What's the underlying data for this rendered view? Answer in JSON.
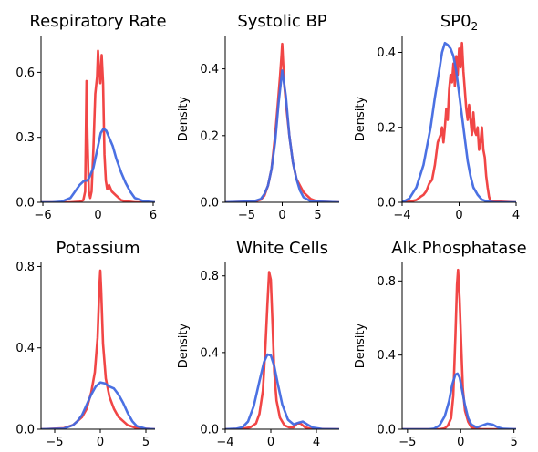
{
  "chart_data": [
    {
      "type": "line",
      "title": "Respiratory Rate",
      "title_sub": "",
      "ylabel": "",
      "xlim": [
        -6.2,
        6.2
      ],
      "ylim": [
        0,
        0.77
      ],
      "xticks": [
        -6,
        0,
        6
      ],
      "xtick_labels": [
        "−6",
        "0",
        "6"
      ],
      "yticks": [
        0.0,
        0.3,
        0.6
      ],
      "ytick_labels": [
        "0.0",
        "0.3",
        "0.6"
      ],
      "series": [
        {
          "color": "#f03c3c",
          "x": [
            -6.2,
            -3,
            -2,
            -1.6,
            -1.4,
            -1.25,
            -1.15,
            -1.0,
            -0.85,
            -0.7,
            -0.5,
            -0.3,
            -0.1,
            0.0,
            0.1,
            0.25,
            0.4,
            0.55,
            0.7,
            0.85,
            1.0,
            1.2,
            1.5,
            2,
            2.5,
            3,
            4,
            6.2
          ],
          "y": [
            0,
            0,
            0.003,
            0.01,
            0.05,
            0.56,
            0.3,
            0.05,
            0.02,
            0.05,
            0.25,
            0.5,
            0.58,
            0.7,
            0.62,
            0.55,
            0.68,
            0.55,
            0.22,
            0.1,
            0.06,
            0.08,
            0.05,
            0.03,
            0.01,
            0.005,
            0,
            0
          ]
        },
        {
          "color": "#4169e1",
          "x": [
            -6.2,
            -5,
            -4,
            -3,
            -2.5,
            -2,
            -1.5,
            -1.2,
            -1,
            -0.5,
            0,
            0.3,
            0.6,
            0.9,
            1.2,
            1.6,
            2,
            2.5,
            3,
            3.5,
            4,
            5,
            6.2
          ],
          "y": [
            0,
            0,
            0.003,
            0.02,
            0.05,
            0.08,
            0.1,
            0.1,
            0.11,
            0.16,
            0.26,
            0.32,
            0.34,
            0.33,
            0.3,
            0.26,
            0.2,
            0.14,
            0.09,
            0.05,
            0.02,
            0.005,
            0
          ]
        }
      ]
    },
    {
      "type": "line",
      "title": "Systolic BP",
      "title_sub": "",
      "ylabel": "Density",
      "xlim": [
        -8,
        8
      ],
      "ylim": [
        0,
        0.5
      ],
      "xticks": [
        -5,
        0,
        5
      ],
      "xtick_labels": [
        "−5",
        "0",
        "5"
      ],
      "yticks": [
        0.0,
        0.2,
        0.4
      ],
      "ytick_labels": [
        "0.0",
        "0.2",
        "0.4"
      ],
      "series": [
        {
          "color": "#f03c3c",
          "x": [
            -8,
            -4,
            -3,
            -2.5,
            -2,
            -1.5,
            -1,
            -0.6,
            -0.3,
            -0.1,
            0,
            0.1,
            0.3,
            0.6,
            1,
            1.5,
            2,
            2.5,
            3,
            4,
            5,
            8
          ],
          "y": [
            0,
            0.002,
            0.008,
            0.02,
            0.05,
            0.1,
            0.2,
            0.3,
            0.38,
            0.44,
            0.475,
            0.43,
            0.35,
            0.28,
            0.2,
            0.12,
            0.07,
            0.05,
            0.03,
            0.01,
            0.002,
            0
          ]
        },
        {
          "color": "#4169e1",
          "x": [
            -8,
            -4,
            -3,
            -2.5,
            -2,
            -1.5,
            -1,
            -0.5,
            0,
            0.5,
            1,
            1.5,
            2,
            2.5,
            3,
            4,
            8
          ],
          "y": [
            0,
            0.003,
            0.01,
            0.025,
            0.05,
            0.1,
            0.18,
            0.3,
            0.395,
            0.32,
            0.2,
            0.12,
            0.07,
            0.035,
            0.015,
            0.003,
            0
          ]
        }
      ]
    },
    {
      "type": "line",
      "title": "SP0",
      "title_sub": "2",
      "ylabel": "Density",
      "xlim": [
        -4,
        4
      ],
      "ylim": [
        0,
        0.445
      ],
      "xticks": [
        -4,
        0,
        4
      ],
      "xtick_labels": [
        "−4",
        "0",
        "4"
      ],
      "yticks": [
        0.0,
        0.2,
        0.4
      ],
      "ytick_labels": [
        "0.0",
        "0.2",
        "0.4"
      ],
      "series": [
        {
          "color": "#f03c3c",
          "x": [
            -4,
            -3.5,
            -3,
            -2.7,
            -2.5,
            -2.3,
            -2.1,
            -1.9,
            -1.7,
            -1.5,
            -1.3,
            -1.2,
            -1.1,
            -1.0,
            -0.9,
            -0.8,
            -0.7,
            -0.6,
            -0.5,
            -0.4,
            -0.3,
            -0.2,
            -0.1,
            0,
            0.1,
            0.2,
            0.3,
            0.4,
            0.5,
            0.6,
            0.7,
            0.8,
            0.9,
            1.0,
            1.1,
            1.2,
            1.3,
            1.4,
            1.5,
            1.6,
            1.7,
            1.8,
            1.9,
            2.0,
            2.1,
            2.2,
            4
          ],
          "y": [
            0,
            0.002,
            0.006,
            0.015,
            0.02,
            0.03,
            0.05,
            0.06,
            0.1,
            0.16,
            0.18,
            0.2,
            0.16,
            0.2,
            0.25,
            0.22,
            0.3,
            0.34,
            0.32,
            0.37,
            0.31,
            0.39,
            0.34,
            0.41,
            0.36,
            0.425,
            0.35,
            0.3,
            0.25,
            0.22,
            0.26,
            0.22,
            0.18,
            0.24,
            0.19,
            0.18,
            0.2,
            0.14,
            0.16,
            0.2,
            0.14,
            0.12,
            0.07,
            0.04,
            0.015,
            0.003,
            0
          ]
        },
        {
          "color": "#4169e1",
          "x": [
            -4,
            -3.5,
            -3,
            -2.5,
            -2,
            -1.7,
            -1.4,
            -1.2,
            -1,
            -0.8,
            -0.6,
            -0.4,
            -0.2,
            0,
            0.2,
            0.4,
            0.6,
            0.8,
            1,
            1.3,
            1.6,
            2,
            2.5,
            3,
            4
          ],
          "y": [
            0,
            0.01,
            0.04,
            0.1,
            0.2,
            0.28,
            0.35,
            0.4,
            0.425,
            0.42,
            0.41,
            0.39,
            0.35,
            0.29,
            0.23,
            0.17,
            0.11,
            0.07,
            0.04,
            0.02,
            0.007,
            0.002,
            0,
            0,
            0
          ]
        }
      ]
    },
    {
      "type": "line",
      "title": "Potassium",
      "title_sub": "",
      "ylabel": "",
      "xlim": [
        -6.5,
        6
      ],
      "ylim": [
        0,
        0.82
      ],
      "xticks": [
        -5,
        0,
        5
      ],
      "xtick_labels": [
        "−5",
        "0",
        "5"
      ],
      "yticks": [
        0.0,
        0.4,
        0.8
      ],
      "ytick_labels": [
        "0.0",
        "0.4",
        "0.8"
      ],
      "series": [
        {
          "color": "#f03c3c",
          "x": [
            -6.5,
            -4,
            -3,
            -2,
            -1.5,
            -1,
            -0.6,
            -0.3,
            -0.1,
            0,
            0.1,
            0.3,
            0.6,
            1,
            1.5,
            2,
            2.5,
            3,
            4,
            6
          ],
          "y": [
            0,
            0.005,
            0.02,
            0.06,
            0.1,
            0.18,
            0.28,
            0.45,
            0.7,
            0.78,
            0.68,
            0.42,
            0.25,
            0.16,
            0.1,
            0.06,
            0.04,
            0.02,
            0.005,
            0
          ]
        },
        {
          "color": "#4169e1",
          "x": [
            -6.5,
            -4,
            -3,
            -2.5,
            -2,
            -1.5,
            -1,
            -0.5,
            0,
            0.5,
            1,
            1.5,
            2,
            2.5,
            3,
            3.5,
            4,
            5,
            6
          ],
          "y": [
            0,
            0.003,
            0.02,
            0.04,
            0.07,
            0.12,
            0.17,
            0.21,
            0.23,
            0.225,
            0.21,
            0.2,
            0.17,
            0.13,
            0.08,
            0.04,
            0.015,
            0.002,
            0
          ]
        }
      ]
    },
    {
      "type": "line",
      "title": "White Cells",
      "title_sub": "",
      "ylabel": "Density",
      "xlim": [
        -4,
        6
      ],
      "ylim": [
        0,
        0.87
      ],
      "xticks": [
        -4,
        0,
        4
      ],
      "xtick_labels": [
        "−4",
        "0",
        "4"
      ],
      "yticks": [
        0.0,
        0.4,
        0.8
      ],
      "ytick_labels": [
        "0.0",
        "0.4",
        "0.8"
      ],
      "series": [
        {
          "color": "#f03c3c",
          "x": [
            -4,
            -2.5,
            -1.8,
            -1.3,
            -1,
            -0.7,
            -0.5,
            -0.3,
            -0.15,
            0,
            0.15,
            0.3,
            0.5,
            0.8,
            1.2,
            1.6,
            2,
            2.3,
            2.6,
            3,
            3.5,
            6
          ],
          "y": [
            0,
            0.002,
            0.01,
            0.03,
            0.08,
            0.2,
            0.4,
            0.65,
            0.82,
            0.78,
            0.55,
            0.3,
            0.15,
            0.06,
            0.02,
            0.01,
            0.01,
            0.03,
            0.03,
            0.01,
            0.002,
            0
          ]
        },
        {
          "color": "#4169e1",
          "x": [
            -4,
            -3,
            -2.5,
            -2,
            -1.5,
            -1,
            -0.6,
            -0.3,
            0,
            0.3,
            0.6,
            1,
            1.5,
            2,
            2.5,
            2.8,
            3.2,
            3.7,
            4.5,
            6
          ],
          "y": [
            0,
            0.003,
            0.01,
            0.04,
            0.12,
            0.25,
            0.35,
            0.39,
            0.385,
            0.33,
            0.24,
            0.13,
            0.05,
            0.025,
            0.035,
            0.04,
            0.025,
            0.008,
            0.001,
            0
          ]
        }
      ]
    },
    {
      "type": "line",
      "title": "Alk.Phosphatase",
      "title_sub": "",
      "ylabel": "Density",
      "xlim": [
        -5.5,
        5.2
      ],
      "ylim": [
        0,
        0.9
      ],
      "xticks": [
        -5,
        0,
        5
      ],
      "xtick_labels": [
        "−5",
        "0",
        "5"
      ],
      "yticks": [
        0.0,
        0.4,
        0.8
      ],
      "ytick_labels": [
        "0.0",
        "0.4",
        "0.8"
      ],
      "series": [
        {
          "color": "#f03c3c",
          "x": [
            -5.5,
            -2,
            -1.5,
            -1.2,
            -0.9,
            -0.7,
            -0.5,
            -0.35,
            -0.25,
            -0.1,
            0.05,
            0.2,
            0.4,
            0.7,
            1,
            1.5,
            2,
            5.2
          ],
          "y": [
            0,
            0,
            0.005,
            0.02,
            0.06,
            0.18,
            0.5,
            0.78,
            0.86,
            0.7,
            0.45,
            0.22,
            0.1,
            0.04,
            0.01,
            0.003,
            0,
            0
          ]
        },
        {
          "color": "#4169e1",
          "x": [
            -5.5,
            -3,
            -2.5,
            -2,
            -1.5,
            -1.1,
            -0.8,
            -0.5,
            -0.3,
            -0.1,
            0.1,
            0.4,
            0.7,
            1,
            1.5,
            2,
            2.5,
            3,
            3.5,
            4,
            5.2
          ],
          "y": [
            0,
            0,
            0.003,
            0.02,
            0.07,
            0.15,
            0.24,
            0.295,
            0.3,
            0.28,
            0.22,
            0.13,
            0.06,
            0.025,
            0.01,
            0.02,
            0.03,
            0.025,
            0.01,
            0.002,
            0
          ]
        }
      ]
    }
  ]
}
